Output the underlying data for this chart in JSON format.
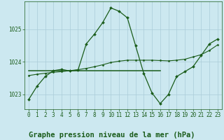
{
  "bg_color": "#cce8f0",
  "grid_color": "#aaccd8",
  "line_color": "#1a5c1a",
  "title": "Graphe pression niveau de la mer (hPa)",
  "xlim": [
    -0.5,
    23.5
  ],
  "ylim": [
    1022.55,
    1025.85
  ],
  "yticks": [
    1023,
    1024,
    1025
  ],
  "xticks": [
    0,
    1,
    2,
    3,
    4,
    5,
    6,
    7,
    8,
    9,
    10,
    11,
    12,
    13,
    14,
    15,
    16,
    17,
    18,
    19,
    20,
    21,
    22,
    23
  ],
  "series1_x": [
    0,
    1,
    2,
    3,
    4,
    5,
    6,
    7,
    8,
    9,
    10,
    11,
    12,
    13,
    14,
    15,
    16,
    17,
    18,
    19,
    20,
    21,
    22,
    23
  ],
  "series1_y": [
    1022.85,
    1023.25,
    1023.55,
    1023.73,
    1023.77,
    1023.72,
    1023.75,
    1024.55,
    1024.85,
    1025.2,
    1025.65,
    1025.55,
    1025.35,
    1024.5,
    1023.65,
    1023.05,
    1022.72,
    1023.0,
    1023.55,
    1023.7,
    1023.85,
    1024.2,
    1024.55,
    1024.7
  ],
  "series2_x": [
    0,
    1,
    2,
    3,
    4,
    5,
    6,
    7,
    8,
    9,
    10,
    11,
    12,
    13,
    14,
    15,
    16,
    17,
    18,
    19,
    20,
    21,
    22,
    23
  ],
  "series2_y": [
    1023.58,
    1023.62,
    1023.65,
    1023.68,
    1023.7,
    1023.73,
    1023.76,
    1023.8,
    1023.85,
    1023.91,
    1023.98,
    1024.02,
    1024.05,
    1024.05,
    1024.05,
    1024.05,
    1024.04,
    1024.03,
    1024.05,
    1024.08,
    1024.15,
    1024.22,
    1024.35,
    1024.52
  ],
  "series3_x": [
    0,
    16
  ],
  "series3_y": [
    1023.72,
    1023.72
  ],
  "title_fontsize": 7.5,
  "tick_fontsize": 5.5
}
